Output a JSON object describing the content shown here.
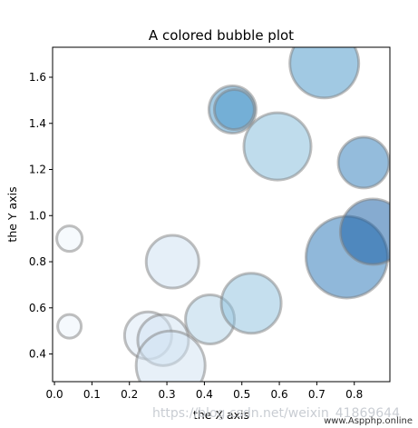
{
  "chart_data": {
    "type": "scatter",
    "title": "A colored bubble plot",
    "xlabel": "the X axis",
    "ylabel": "the Y axis",
    "xlim": [
      -0.005,
      0.895
    ],
    "ylim": [
      0.28,
      1.73
    ],
    "xticks": [
      "0.0",
      "0.1",
      "0.2",
      "0.3",
      "0.4",
      "0.5",
      "0.6",
      "0.7",
      "0.8"
    ],
    "yticks": [
      "0.4",
      "0.6",
      "0.8",
      "1.0",
      "1.2",
      "1.4",
      "1.6"
    ],
    "grid": false,
    "colormap": "Blues",
    "points": [
      {
        "x": 0.04,
        "y": 0.9,
        "size": 14,
        "shade": 0.05
      },
      {
        "x": 0.04,
        "y": 0.52,
        "size": 13,
        "shade": 0.06
      },
      {
        "x": 0.25,
        "y": 0.48,
        "size": 26,
        "shade": 0.15
      },
      {
        "x": 0.29,
        "y": 0.46,
        "size": 28,
        "shade": 0.2
      },
      {
        "x": 0.315,
        "y": 0.8,
        "size": 29,
        "shade": 0.22
      },
      {
        "x": 0.31,
        "y": 0.35,
        "size": 38,
        "shade": 0.2
      },
      {
        "x": 0.415,
        "y": 0.55,
        "size": 27,
        "shade": 0.32
      },
      {
        "x": 0.525,
        "y": 0.62,
        "size": 33,
        "shade": 0.42
      },
      {
        "x": 0.475,
        "y": 1.46,
        "size": 26,
        "shade": 0.6
      },
      {
        "x": 0.48,
        "y": 1.46,
        "size": 22,
        "shade": 0.62
      },
      {
        "x": 0.595,
        "y": 1.3,
        "size": 37,
        "shade": 0.45
      },
      {
        "x": 0.72,
        "y": 1.66,
        "size": 38,
        "shade": 0.62
      },
      {
        "x": 0.825,
        "y": 1.23,
        "size": 28,
        "shade": 0.72
      },
      {
        "x": 0.78,
        "y": 0.82,
        "size": 45,
        "shade": 0.75
      },
      {
        "x": 0.85,
        "y": 0.93,
        "size": 36,
        "shade": 0.85
      }
    ]
  },
  "watermark": {
    "faint": "https://blog.csdn.net/weixin_41869644",
    "credit": "www.Aspphp.online"
  }
}
